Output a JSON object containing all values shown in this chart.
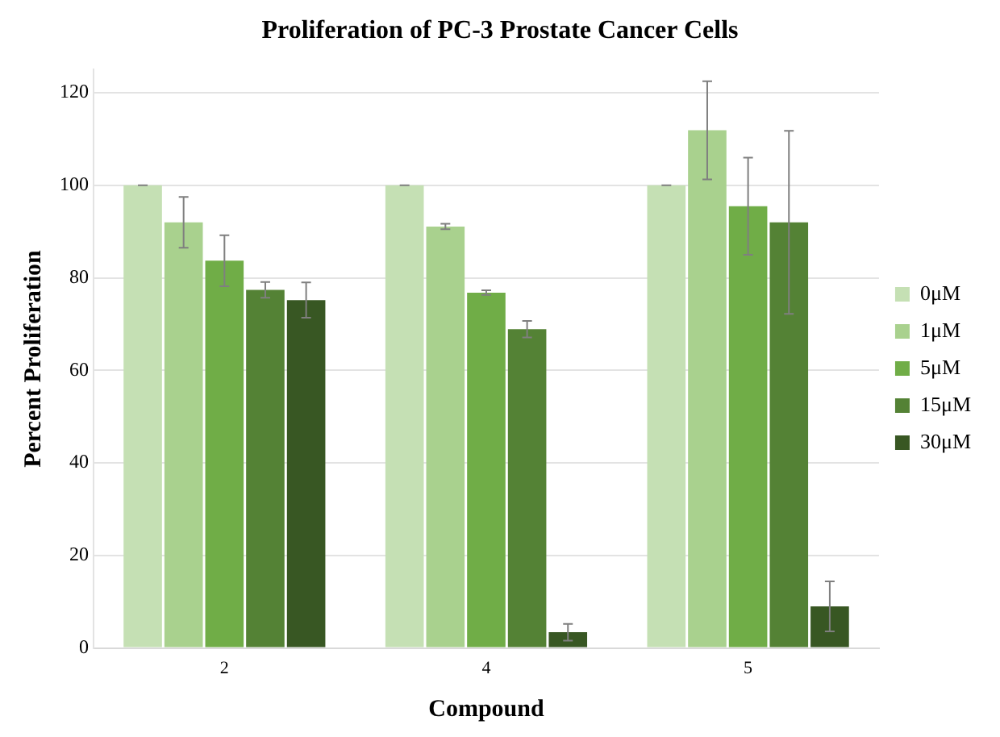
{
  "chart_data": {
    "type": "bar",
    "title": "Proliferation of PC-3 Prostate Cancer Cells",
    "xlabel": "Compound",
    "ylabel": "Percent Proliferation",
    "categories": [
      "2",
      "4",
      "5"
    ],
    "series": [
      {
        "name": "0μM",
        "color": "#c5e0b4",
        "values": [
          100,
          100,
          100
        ],
        "errors": [
          0,
          0,
          0
        ]
      },
      {
        "name": "1μM",
        "color": "#a9d18e",
        "values": [
          92,
          91.1,
          111.9
        ],
        "errors": [
          5.5,
          0.6,
          10.6
        ]
      },
      {
        "name": "5μM",
        "color": "#70ad47",
        "values": [
          83.7,
          76.8,
          95.5
        ],
        "errors": [
          5.5,
          0.5,
          10.5
        ]
      },
      {
        "name": "15μM",
        "color": "#548235",
        "values": [
          77.4,
          68.9,
          92
        ],
        "errors": [
          1.7,
          1.8,
          19.8
        ]
      },
      {
        "name": "30μM",
        "color": "#385723",
        "values": [
          75.2,
          3.4,
          9
        ],
        "errors": [
          3.8,
          1.8,
          5.4
        ]
      }
    ],
    "ylim": [
      0,
      125
    ],
    "yticks": [
      0,
      20,
      40,
      60,
      80,
      100,
      120
    ],
    "grid": "y",
    "legend": "right"
  }
}
